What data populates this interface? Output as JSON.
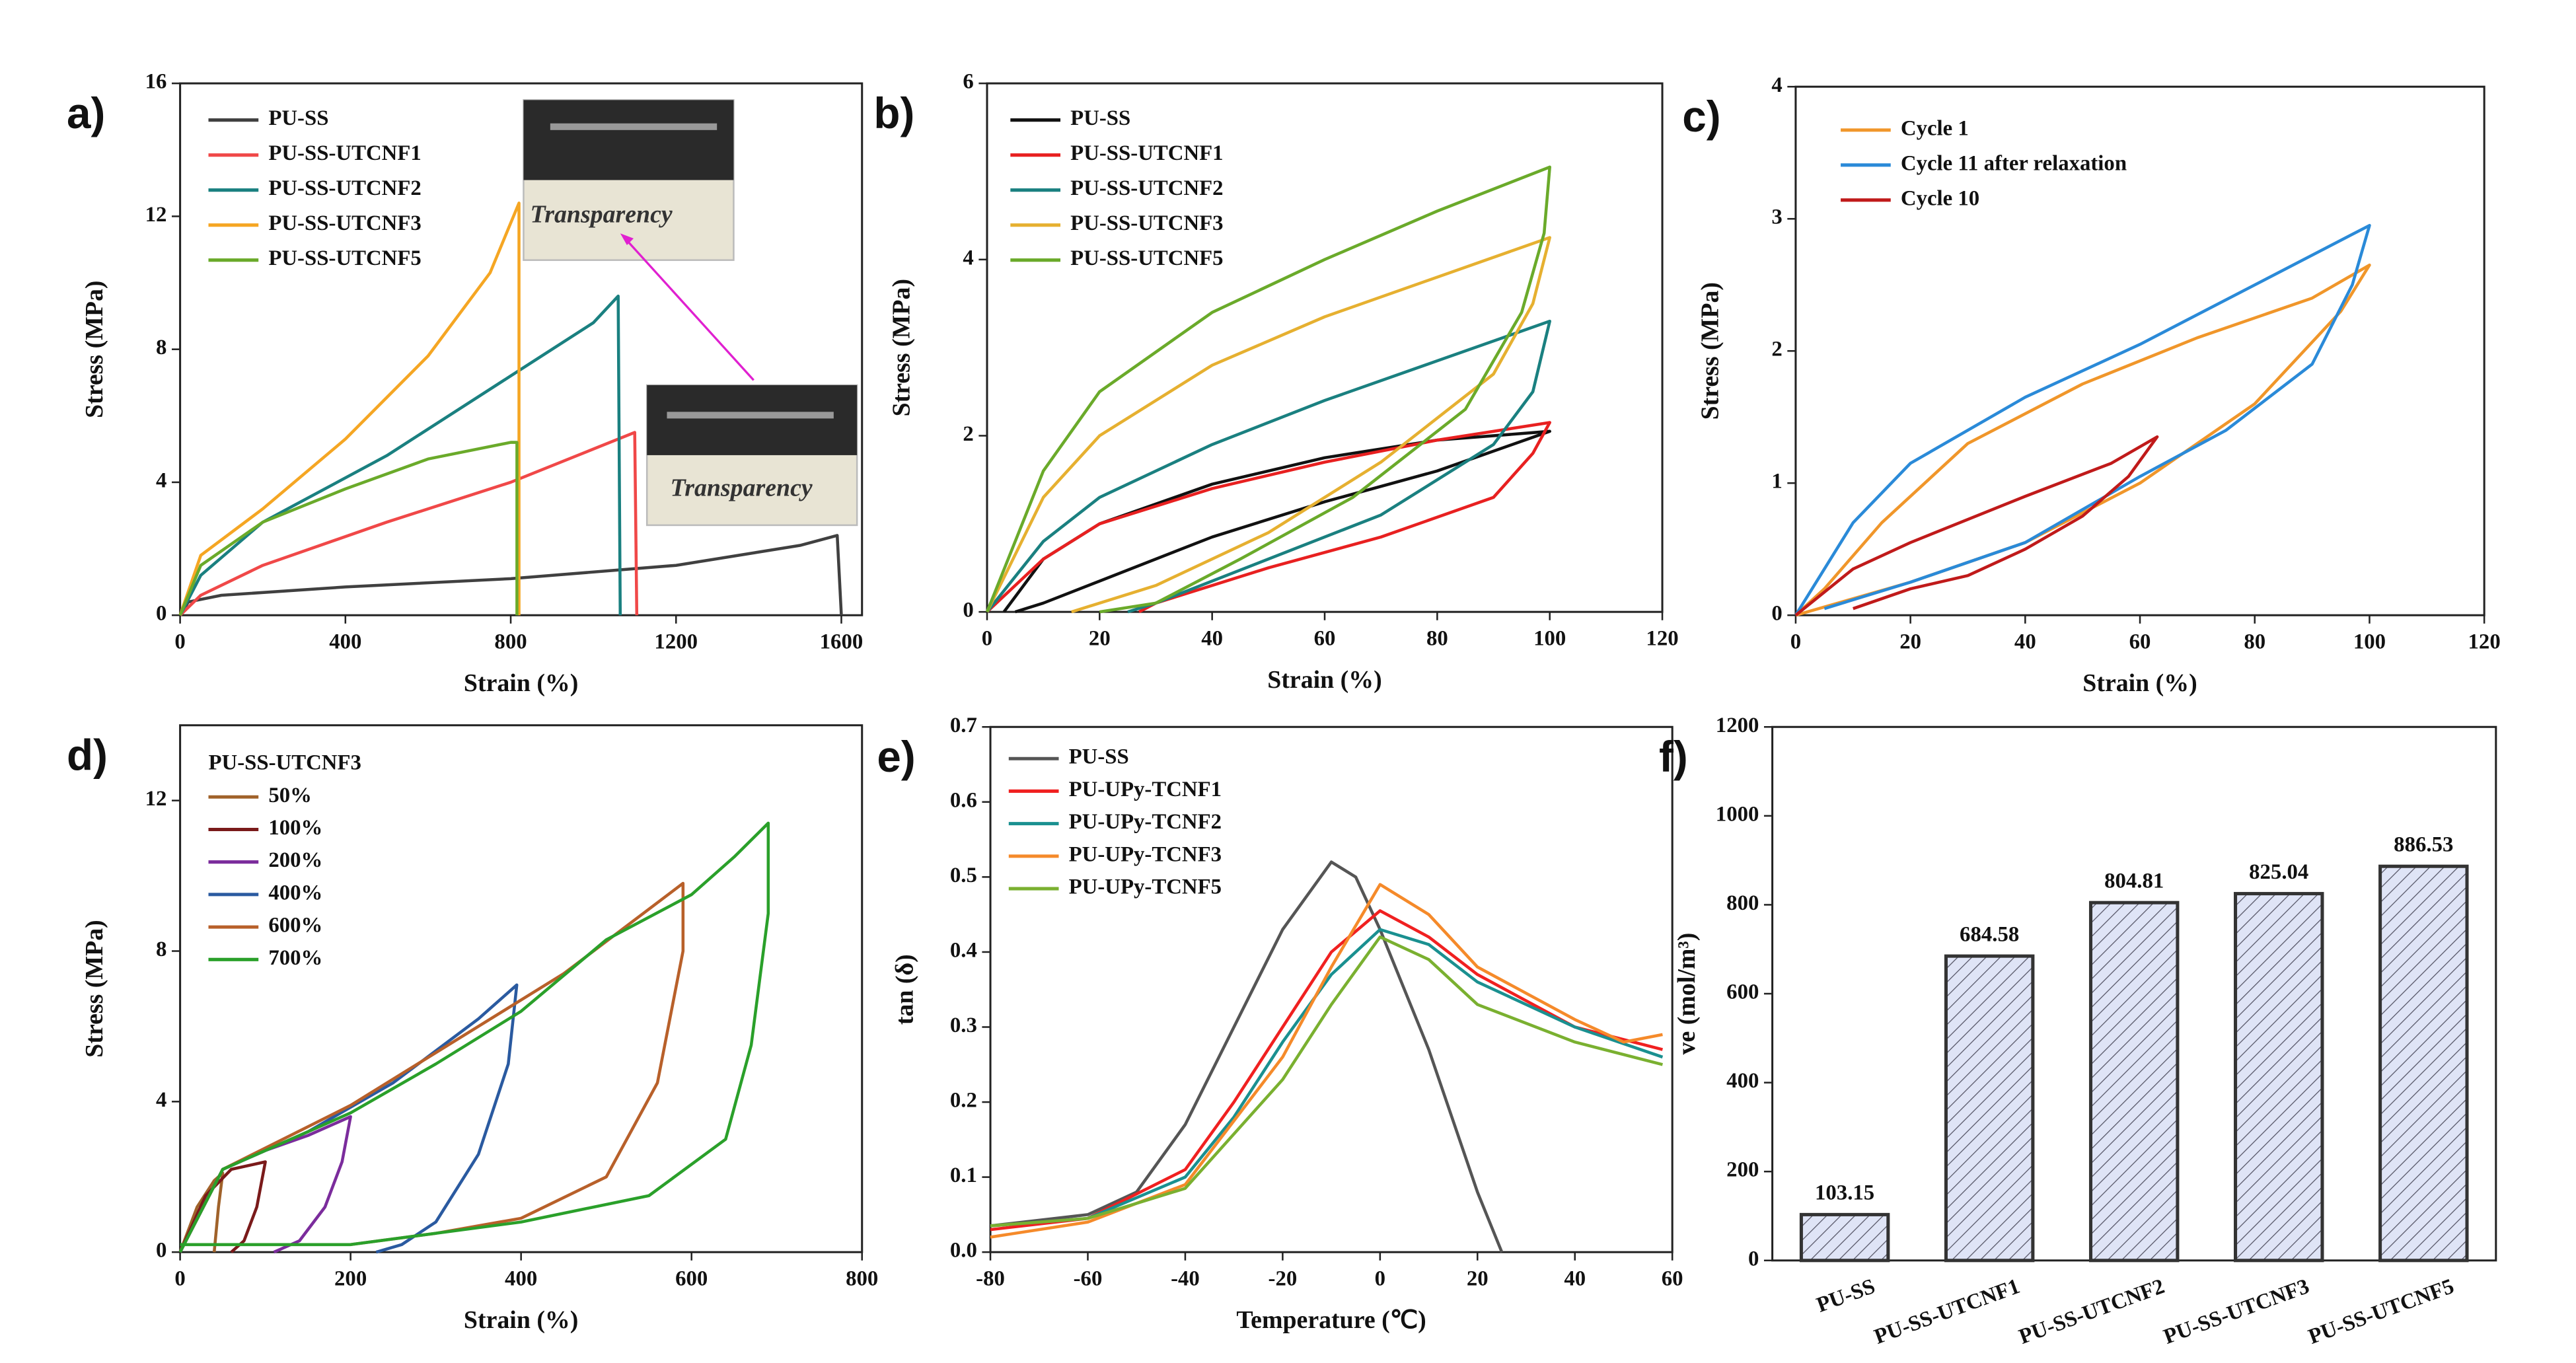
{
  "chart_data": [
    {
      "type": "line",
      "label": "a)",
      "xlabel": "Strain (%)",
      "ylabel": "Stress (MPa)",
      "xlim": [
        0,
        1650
      ],
      "xticks": [
        0,
        400,
        800,
        1200,
        1600
      ],
      "ylim": [
        0,
        16
      ],
      "yticks": [
        0,
        4,
        8,
        12,
        16
      ],
      "legend_position": "upper left",
      "annotations": [
        "Transparency",
        "Transparency"
      ],
      "series": [
        {
          "name": "PU-SS",
          "color": "#404040",
          "x": [
            0,
            20,
            100,
            400,
            800,
            1200,
            1500,
            1590,
            1600
          ],
          "values": [
            0,
            0.4,
            0.6,
            0.85,
            1.1,
            1.5,
            2.1,
            2.4,
            0
          ]
        },
        {
          "name": "PU-SS-UTCNF1",
          "color": "#f04848",
          "x": [
            0,
            50,
            200,
            500,
            800,
            1000,
            1100,
            1105
          ],
          "values": [
            0,
            0.6,
            1.5,
            2.8,
            4.0,
            5.0,
            5.5,
            0
          ]
        },
        {
          "name": "PU-SS-UTCNF2",
          "color": "#1a8080",
          "x": [
            0,
            50,
            200,
            500,
            800,
            1000,
            1060,
            1065
          ],
          "values": [
            0,
            1.2,
            2.8,
            4.8,
            7.2,
            8.8,
            9.6,
            0
          ]
        },
        {
          "name": "PU-SS-UTCNF3",
          "color": "#f5a623",
          "x": [
            0,
            50,
            200,
            400,
            600,
            750,
            820,
            820
          ],
          "values": [
            0,
            1.8,
            3.2,
            5.3,
            7.8,
            10.3,
            12.4,
            0
          ]
        },
        {
          "name": "PU-SS-UTCNF5",
          "color": "#6aaa2a",
          "x": [
            0,
            50,
            200,
            400,
            600,
            800,
            815,
            815
          ],
          "values": [
            0,
            1.5,
            2.8,
            3.8,
            4.7,
            5.2,
            5.2,
            0
          ]
        }
      ]
    },
    {
      "type": "line",
      "label": "b)",
      "xlabel": "Strain (%)",
      "ylabel": "Stress (MPa)",
      "xlim": [
        0,
        120
      ],
      "xticks": [
        0,
        20,
        40,
        60,
        80,
        100,
        120
      ],
      "ylim": [
        0,
        6
      ],
      "yticks": [
        0,
        2,
        4,
        6
      ],
      "legend_position": "upper left",
      "series": [
        {
          "name": "PU-SS",
          "color": "#111111",
          "x": [
            3,
            10,
            20,
            40,
            60,
            80,
            100,
            80,
            60,
            40,
            20,
            10,
            5
          ],
          "values": [
            0,
            0.6,
            1.0,
            1.45,
            1.75,
            1.95,
            2.05,
            1.6,
            1.25,
            0.85,
            0.35,
            0.1,
            0
          ]
        },
        {
          "name": "PU-SS-UTCNF1",
          "color": "#e82020",
          "x": [
            0,
            10,
            20,
            40,
            60,
            80,
            100,
            97,
            90,
            70,
            50,
            30,
            27
          ],
          "values": [
            0,
            0.6,
            1.0,
            1.4,
            1.7,
            1.95,
            2.15,
            1.8,
            1.3,
            0.85,
            0.5,
            0.1,
            0
          ]
        },
        {
          "name": "PU-SS-UTCNF2",
          "color": "#1a8080",
          "x": [
            0,
            10,
            20,
            40,
            60,
            80,
            100,
            97,
            90,
            70,
            50,
            30,
            25
          ],
          "values": [
            0,
            0.8,
            1.3,
            1.9,
            2.4,
            2.85,
            3.3,
            2.5,
            1.9,
            1.1,
            0.6,
            0.1,
            0
          ]
        },
        {
          "name": "PU-SS-UTCNF3",
          "color": "#e6b030",
          "x": [
            0,
            10,
            20,
            40,
            60,
            80,
            100,
            97,
            90,
            70,
            50,
            30,
            15
          ],
          "values": [
            0,
            1.3,
            2.0,
            2.8,
            3.35,
            3.8,
            4.25,
            3.5,
            2.7,
            1.7,
            0.9,
            0.3,
            0
          ]
        },
        {
          "name": "PU-SS-UTCNF5",
          "color": "#6aaa2a",
          "x": [
            0,
            10,
            20,
            40,
            60,
            80,
            100,
            99,
            95,
            85,
            65,
            45,
            30,
            20
          ],
          "values": [
            0,
            1.6,
            2.5,
            3.4,
            4.0,
            4.55,
            5.05,
            4.3,
            3.4,
            2.3,
            1.3,
            0.6,
            0.1,
            0
          ]
        }
      ]
    },
    {
      "type": "line",
      "label": "c)",
      "xlabel": "Strain (%)",
      "ylabel": "Stress (MPa)",
      "xlim": [
        0,
        120
      ],
      "xticks": [
        0,
        20,
        40,
        60,
        80,
        100,
        120
      ],
      "ylim": [
        0,
        4
      ],
      "yticks": [
        0,
        1,
        2,
        3,
        4
      ],
      "legend_position": "upper left",
      "series": [
        {
          "name": "Cycle 1",
          "color": "#f0962a",
          "x": [
            0,
            20,
            40,
            60,
            80,
            95,
            100,
            90,
            70,
            50,
            30,
            15,
            5,
            0
          ],
          "values": [
            0,
            0.25,
            0.55,
            1.0,
            1.6,
            2.3,
            2.65,
            2.4,
            2.1,
            1.75,
            1.3,
            0.7,
            0.2,
            0
          ]
        },
        {
          "name": "Cycle 11 after relaxation",
          "color": "#2a8ad8",
          "x": [
            0,
            10,
            20,
            40,
            60,
            80,
            100,
            97,
            90,
            75,
            60,
            40,
            20,
            5
          ],
          "values": [
            0,
            0.7,
            1.15,
            1.65,
            2.05,
            2.5,
            2.95,
            2.5,
            1.9,
            1.4,
            1.05,
            0.55,
            0.25,
            0.05
          ]
        },
        {
          "name": "Cycle 10",
          "color": "#c01a1a",
          "x": [
            0,
            10,
            20,
            40,
            55,
            63,
            58,
            50,
            40,
            30,
            20,
            10
          ],
          "values": [
            0,
            0.35,
            0.55,
            0.9,
            1.15,
            1.35,
            1.05,
            0.75,
            0.5,
            0.3,
            0.2,
            0.05
          ]
        }
      ]
    },
    {
      "type": "line",
      "label": "d)",
      "xlabel": "Strain (%)",
      "ylabel": "Stress (MPa)",
      "legend_title": "PU-SS-UTCNF3",
      "xlim": [
        0,
        800
      ],
      "xticks": [
        0,
        200,
        400,
        600,
        800
      ],
      "ylim": [
        0,
        14
      ],
      "yticks": [
        0,
        4,
        8,
        12
      ],
      "legend_position": "upper left",
      "series": [
        {
          "name": "50%",
          "color": "#a0622a",
          "x": [
            0,
            20,
            40,
            50,
            45,
            40
          ],
          "values": [
            0,
            1.2,
            1.9,
            2.1,
            1.2,
            0
          ]
        },
        {
          "name": "100%",
          "color": "#7a1a1a",
          "x": [
            0,
            30,
            60,
            100,
            90,
            75,
            60
          ],
          "values": [
            0,
            1.5,
            2.2,
            2.4,
            1.2,
            0.3,
            0
          ]
        },
        {
          "name": "200%",
          "color": "#7b2c9c",
          "x": [
            0,
            50,
            100,
            150,
            200,
            190,
            170,
            140,
            110
          ],
          "values": [
            0,
            2.2,
            2.7,
            3.1,
            3.6,
            2.4,
            1.2,
            0.3,
            0
          ]
        },
        {
          "name": "400%",
          "color": "#2a5aa0",
          "x": [
            0,
            50,
            150,
            250,
            350,
            395,
            385,
            350,
            300,
            260,
            230
          ],
          "values": [
            0,
            2.2,
            3.2,
            4.5,
            6.2,
            7.1,
            5,
            2.6,
            0.8,
            0.2,
            0
          ]
        },
        {
          "name": "600%",
          "color": "#b8602a",
          "x": [
            0,
            50,
            200,
            300,
            450,
            590,
            590,
            560,
            500,
            400,
            300,
            200
          ],
          "values": [
            0,
            2.2,
            3.9,
            5.3,
            7.4,
            9.8,
            8,
            4.5,
            2.0,
            0.9,
            0.5,
            0.2
          ]
        },
        {
          "name": "700%",
          "color": "#2aa02a",
          "x": [
            0,
            50,
            200,
            300,
            400,
            500,
            600,
            650,
            690,
            690,
            670,
            640,
            550,
            400,
            200,
            0
          ],
          "values": [
            0,
            2.2,
            3.7,
            5.0,
            6.4,
            8.3,
            9.5,
            10.5,
            11.4,
            9,
            5.5,
            3.0,
            1.5,
            0.8,
            0.2,
            0.2
          ]
        }
      ]
    },
    {
      "type": "line",
      "label": "e)",
      "xlabel": "Temperature (℃)",
      "ylabel": "tan (δ)",
      "xlim": [
        -80,
        60
      ],
      "xticks": [
        -80,
        -60,
        -40,
        -20,
        0,
        20,
        40,
        60
      ],
      "ylim": [
        0,
        0.7
      ],
      "yticks": [
        {
          "value": 0,
          "label": "0.0"
        },
        0.1,
        0.2,
        0.3,
        0.4,
        0.5,
        0.6,
        0.7
      ],
      "legend_position": "upper left",
      "series": [
        {
          "name": "PU-SS",
          "color": "#555555",
          "x": [
            -80,
            -60,
            -50,
            -40,
            -30,
            -20,
            -10,
            -5,
            0,
            10,
            20,
            25
          ],
          "values": [
            0.035,
            0.05,
            0.08,
            0.17,
            0.3,
            0.43,
            0.52,
            0.5,
            0.43,
            0.27,
            0.08,
            0
          ]
        },
        {
          "name": "PU-UPy-TCNF1",
          "color": "#f02020",
          "x": [
            -80,
            -60,
            -40,
            -30,
            -20,
            -10,
            0,
            10,
            20,
            40,
            58
          ],
          "values": [
            0.03,
            0.045,
            0.11,
            0.2,
            0.3,
            0.4,
            0.455,
            0.42,
            0.37,
            0.3,
            0.27
          ]
        },
        {
          "name": "PU-UPy-TCNF2",
          "color": "#1a9090",
          "x": [
            -80,
            -60,
            -40,
            -30,
            -20,
            -10,
            0,
            10,
            20,
            40,
            58
          ],
          "values": [
            0.035,
            0.045,
            0.1,
            0.18,
            0.28,
            0.37,
            0.43,
            0.41,
            0.36,
            0.3,
            0.26
          ]
        },
        {
          "name": "PU-UPy-TCNF3",
          "color": "#f58a2a",
          "x": [
            -80,
            -60,
            -40,
            -20,
            -10,
            0,
            10,
            20,
            40,
            50,
            58
          ],
          "values": [
            0.02,
            0.04,
            0.09,
            0.26,
            0.38,
            0.49,
            0.45,
            0.38,
            0.31,
            0.28,
            0.29
          ]
        },
        {
          "name": "PU-UPy-TCNF5",
          "color": "#7ab030",
          "x": [
            -80,
            -60,
            -40,
            -20,
            -10,
            0,
            10,
            20,
            40,
            58
          ],
          "values": [
            0.035,
            0.045,
            0.085,
            0.23,
            0.33,
            0.42,
            0.39,
            0.33,
            0.28,
            0.25
          ]
        }
      ]
    },
    {
      "type": "bar",
      "label": "f)",
      "ylabel": "ve (mol/m³)",
      "categories": [
        "PU-SS",
        "PU-SS-UTCNF1",
        "PU-SS-UTCNF2",
        "PU-SS-UTCNF3",
        "PU-SS-UTCNF5"
      ],
      "values": [
        103.15,
        684.58,
        804.81,
        825.04,
        886.53
      ],
      "ylim": [
        0,
        1200
      ],
      "yticks": [
        0,
        200,
        400,
        600,
        800,
        1000,
        1200
      ]
    }
  ]
}
